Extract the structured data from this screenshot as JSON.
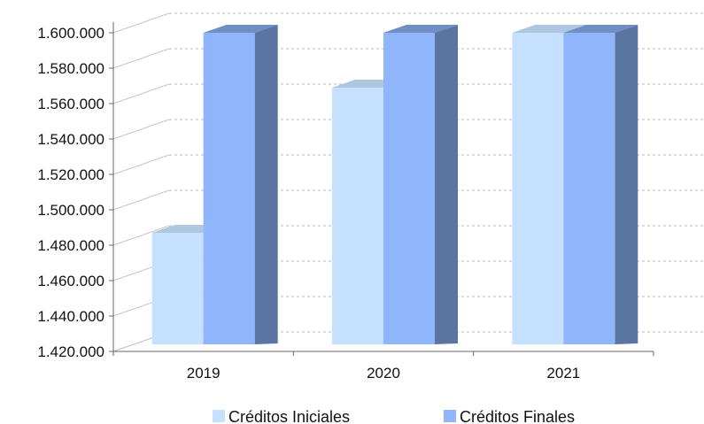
{
  "chart_data": {
    "type": "bar",
    "categories": [
      "2019",
      "2020",
      "2021"
    ],
    "series": [
      {
        "name": "Créditos Iniciales",
        "values": [
          1487000,
          1569000,
          1600000
        ],
        "color": "#c6e1ff"
      },
      {
        "name": "Créditos Finales",
        "values": [
          1600000,
          1600000,
          1600000
        ],
        "color": "#8fb5fb"
      }
    ],
    "y_tick_labels": [
      "1.420.000",
      "1.440.000",
      "1.460.000",
      "1.480.000",
      "1.500.000",
      "1.520.000",
      "1.540.000",
      "1.560.000",
      "1.580.000",
      "1.600.000"
    ],
    "y_ticks": [
      1420000,
      1440000,
      1460000,
      1480000,
      1500000,
      1520000,
      1540000,
      1560000,
      1580000,
      1600000
    ],
    "ylim": [
      1420000,
      1600000
    ],
    "grid": true,
    "legend_position": "bottom",
    "style": "3d-column"
  }
}
